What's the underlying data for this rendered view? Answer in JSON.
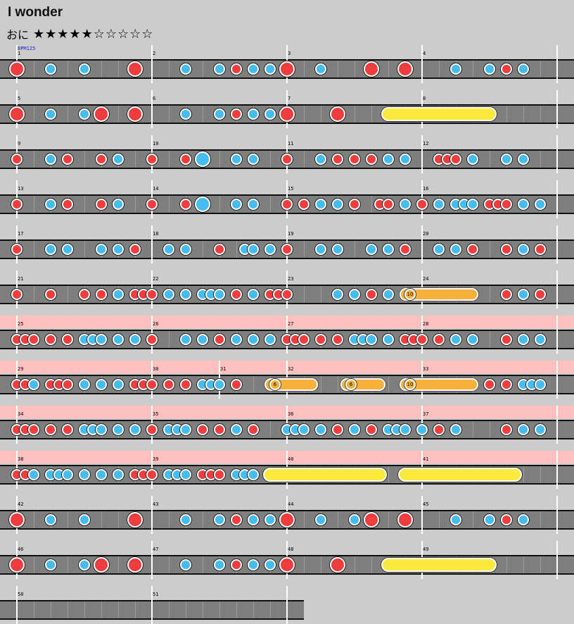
{
  "title": "I wonder",
  "difficulty_label": "おに",
  "stars_filled": 5,
  "stars_total": 10,
  "stars_text": "★★★★★☆☆☆☆☆",
  "bpm_label": "BPM125",
  "colors": {
    "don": "#f03c3c",
    "ka": "#44bdf0",
    "roll": "#fbea3c",
    "balloon": "#f7b13a",
    "gogo": "#ffc0c0",
    "lane": "#7e7e7e"
  },
  "rows": [
    {
      "measures": [
        1,
        2,
        3,
        4
      ],
      "gogo": false,
      "notes": [
        "D",
        0,
        "k",
        2,
        "k",
        4,
        "D",
        7,
        "k",
        10,
        "k",
        12,
        "d",
        13,
        "k",
        14,
        "k",
        15,
        "D",
        16,
        "k",
        18,
        "D",
        21,
        "D",
        23,
        "k",
        26,
        "k",
        28,
        "d",
        29,
        "k",
        30
      ]
    },
    {
      "measures": [
        5,
        6,
        7,
        8
      ],
      "gogo": false,
      "notes": [
        "D",
        0,
        "k",
        2,
        "k",
        4,
        "D",
        5,
        "D",
        7,
        "k",
        10,
        "k",
        12,
        "d",
        13,
        "k",
        14,
        "k",
        15,
        "D",
        16,
        "D",
        19
      ],
      "rolls": [
        {
          "from": 22,
          "to": 28
        }
      ]
    },
    {
      "measures": [
        9,
        10,
        11,
        12
      ],
      "gogo": false,
      "notes": [
        "d",
        0,
        "k",
        2,
        "d",
        3,
        "d",
        5,
        "k",
        6,
        "d",
        8,
        "d",
        10,
        "K",
        11,
        "k",
        13,
        "k",
        14,
        "d",
        16,
        "k",
        18,
        "d",
        19,
        "d",
        20,
        "d",
        21,
        "k",
        22,
        "k",
        23,
        "d",
        25,
        "d",
        25.5,
        "d",
        26,
        "k",
        27,
        "k",
        29,
        "k",
        30
      ]
    },
    {
      "measures": [
        13,
        14,
        15,
        16
      ],
      "gogo": false,
      "notes": [
        "d",
        0,
        "k",
        2,
        "d",
        3,
        "d",
        5,
        "k",
        6,
        "d",
        8,
        "d",
        10,
        "K",
        11,
        "k",
        13,
        "k",
        14,
        "d",
        16,
        "d",
        17,
        "k",
        18,
        "k",
        19,
        "d",
        20,
        "d",
        21.5,
        "d",
        22,
        "k",
        23,
        "d",
        24,
        "k",
        25,
        "k",
        26,
        "k",
        26.5,
        "k",
        27,
        "d",
        28,
        "d",
        28.5,
        "d",
        29,
        "k",
        30,
        "k",
        31
      ]
    },
    {
      "measures": [
        17,
        18,
        19,
        20
      ],
      "gogo": false,
      "notes": [
        "d",
        0,
        "k",
        2,
        "k",
        3,
        "k",
        5,
        "k",
        6,
        "d",
        7,
        "k",
        9,
        "k",
        10,
        "d",
        12,
        "k",
        13.5,
        "k",
        14,
        "k",
        15,
        "d",
        16,
        "k",
        18,
        "k",
        19,
        "k",
        21,
        "k",
        22,
        "d",
        23,
        "k",
        25,
        "k",
        26,
        "d",
        27,
        "d",
        29,
        "k",
        30,
        "d",
        31
      ]
    },
    {
      "measures": [
        21,
        22,
        23,
        24
      ],
      "gogo": false,
      "notes": [
        "d",
        0,
        "d",
        2,
        "d",
        4,
        "d",
        5,
        "k",
        6,
        "d",
        7,
        "d",
        7.5,
        "d",
        8,
        "k",
        9,
        "k",
        10,
        "k",
        11,
        "k",
        11.5,
        "k",
        12,
        "d",
        13,
        "k",
        14,
        "d",
        15,
        "d",
        15.5,
        "d",
        16,
        "k",
        19,
        "k",
        20,
        "d",
        21,
        "k",
        22,
        "d",
        29,
        "k",
        30,
        "d",
        31
      ],
      "balloons": [
        {
          "from": 23,
          "to": 27,
          "count": "10"
        }
      ]
    },
    {
      "measures": [
        25,
        26,
        27,
        28
      ],
      "gogo": true,
      "notes": [
        "d",
        0,
        "d",
        0.5,
        "d",
        1,
        "d",
        2,
        "d",
        3,
        "k",
        4,
        "k",
        4.5,
        "k",
        5,
        "k",
        6,
        "k",
        7,
        "d",
        8,
        "k",
        10,
        "k",
        11,
        "d",
        12,
        "k",
        13,
        "k",
        14,
        "k",
        15,
        "d",
        16,
        "d",
        16.5,
        "d",
        17,
        "d",
        18,
        "d",
        19,
        "k",
        20,
        "k",
        20.5,
        "k",
        21,
        "k",
        22,
        "d",
        23,
        "d",
        23.5,
        "d",
        24,
        "d",
        25,
        "k",
        26,
        "k",
        27,
        "d",
        29,
        "k",
        30,
        "k",
        31
      ]
    },
    {
      "measures": [
        29,
        30,
        31,
        32,
        33
      ],
      "gogo": true,
      "notes": [
        "d",
        0,
        "d",
        0.5,
        "k",
        1,
        "d",
        2,
        "d",
        2.5,
        "d",
        3,
        "k",
        4,
        "k",
        5,
        "k",
        6,
        "d",
        7,
        "d",
        7.5,
        "d",
        8,
        "d",
        9,
        "d",
        10,
        "k",
        11,
        "k",
        11.5,
        "k",
        12,
        "d",
        13,
        "d",
        28,
        "d",
        29,
        "k",
        30,
        "k",
        30.5,
        "k",
        31
      ],
      "balloons": [
        {
          "from": 15,
          "to": 17.5,
          "count": "6"
        },
        {
          "from": 19.5,
          "to": 21.5,
          "count": "6"
        },
        {
          "from": 23,
          "to": 27,
          "count": "10"
        }
      ]
    },
    {
      "measures": [
        34,
        35,
        36,
        37
      ],
      "gogo": true,
      "notes": [
        "d",
        0,
        "d",
        0.5,
        "d",
        1,
        "d",
        2,
        "d",
        3,
        "k",
        4,
        "k",
        4.5,
        "k",
        5,
        "k",
        6,
        "k",
        7,
        "d",
        8,
        "k",
        9,
        "k",
        9.5,
        "k",
        10,
        "d",
        11,
        "d",
        12,
        "k",
        13,
        "d",
        14,
        "k",
        16,
        "k",
        16.5,
        "k",
        17,
        "k",
        18,
        "d",
        19,
        "k",
        20,
        "d",
        21,
        "k",
        22,
        "k",
        22.5,
        "k",
        23,
        "k",
        24,
        "d",
        25,
        "k",
        26,
        "d",
        29,
        "k",
        30,
        "k",
        31
      ]
    },
    {
      "measures": [
        38,
        39,
        40,
        41
      ],
      "gogo": true,
      "notes": [
        "d",
        0,
        "d",
        0.5,
        "k",
        1,
        "k",
        2,
        "k",
        2.5,
        "k",
        3,
        "k",
        4,
        "k",
        5,
        "k",
        6,
        "d",
        7,
        "d",
        7.5,
        "d",
        8,
        "k",
        9,
        "k",
        9.5,
        "k",
        10,
        "d",
        11,
        "d",
        11.5,
        "d",
        12,
        "k",
        13,
        "k",
        13.5,
        "k",
        14
      ],
      "rolls": [
        {
          "from": 15,
          "to": 21.5
        },
        {
          "from": 23,
          "to": 29.5
        }
      ]
    },
    {
      "measures": [
        42,
        43,
        44,
        45
      ],
      "gogo": false,
      "notes": [
        "D",
        0,
        "k",
        2,
        "k",
        4,
        "D",
        7,
        "k",
        10,
        "k",
        12,
        "d",
        13,
        "k",
        14,
        "k",
        15,
        "D",
        16,
        "k",
        18,
        "k",
        20,
        "D",
        21,
        "D",
        23,
        "k",
        26,
        "k",
        28,
        "d",
        29,
        "k",
        30
      ]
    },
    {
      "measures": [
        46,
        47,
        48,
        49
      ],
      "gogo": false,
      "notes": [
        "D",
        0,
        "k",
        2,
        "k",
        4,
        "D",
        5,
        "D",
        7,
        "k",
        10,
        "k",
        12,
        "d",
        13,
        "k",
        14,
        "k",
        15,
        "D",
        16,
        "D",
        19
      ],
      "rolls": [
        {
          "from": 22,
          "to": 28
        }
      ]
    },
    {
      "measures": [
        50,
        51
      ],
      "gogo": false,
      "notes": []
    }
  ]
}
